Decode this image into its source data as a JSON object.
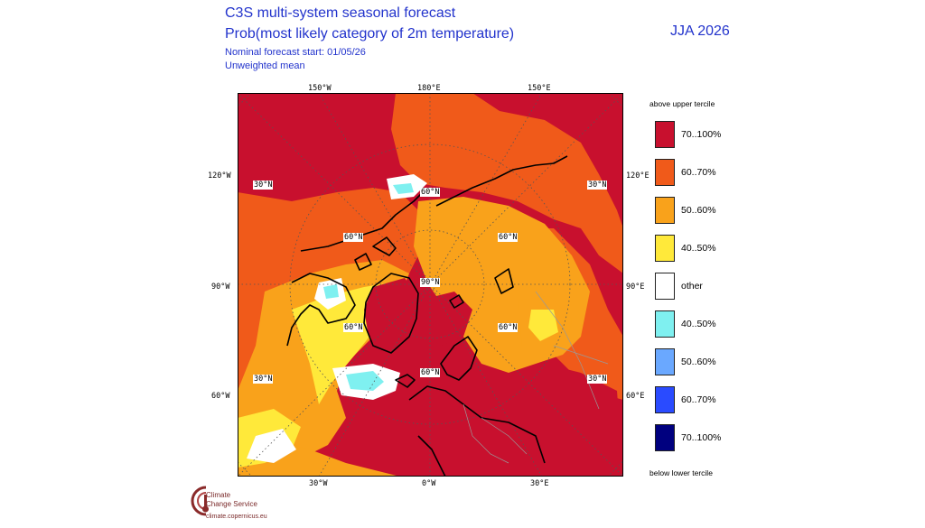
{
  "header": {
    "title_line1": "C3S multi-system seasonal forecast",
    "title_line2": "Prob(most likely category of 2m temperature)",
    "forecast_start": "Nominal forecast start: 01/05/26",
    "mean_type": "Unweighted mean",
    "season": "JJA 2026"
  },
  "map": {
    "top_longitudes": [
      "150°W",
      "180°E",
      "150°E"
    ],
    "bottom_longitudes": [
      "30°W",
      "0°W",
      "30°E"
    ],
    "left_longitudes": [
      "120°W",
      "90°W",
      "60°W"
    ],
    "right_longitudes": [
      "120°E",
      "90°E",
      "60°E"
    ],
    "latitude_labels": [
      "30°N",
      "60°N",
      "90°N",
      "60°N",
      "60°N",
      "60°N",
      "60°N",
      "30°N",
      "30°N",
      "30°N"
    ],
    "colors": {
      "c70_100_above": "#c8102e",
      "c60_70_above": "#f05a1a",
      "c50_60_above": "#f9a21b",
      "c40_50_above": "#ffe93a",
      "other": "#ffffff",
      "c40_50_below": "#7ff0f0",
      "c50_60_below": "#6aa8ff",
      "c60_70_below": "#2a4bff",
      "c70_100_below": "#00007f"
    }
  },
  "legend": {
    "top_label": "above upper tercile",
    "bottom_label": "below lower tercile",
    "items": [
      {
        "label": "70..100%",
        "color": "#c8102e"
      },
      {
        "label": "60..70%",
        "color": "#f05a1a"
      },
      {
        "label": "50..60%",
        "color": "#f9a21b"
      },
      {
        "label": "40..50%",
        "color": "#ffe93a"
      },
      {
        "label": "other",
        "color": "#ffffff"
      },
      {
        "label": "40..50%",
        "color": "#7ff0f0"
      },
      {
        "label": "50..60%",
        "color": "#6aa8ff"
      },
      {
        "label": "60..70%",
        "color": "#2a4bff"
      },
      {
        "label": "70..100%",
        "color": "#00007f"
      }
    ]
  },
  "logo": {
    "line1": "Climate",
    "line2": "Change Service",
    "url": "climate.copernicus.eu"
  }
}
